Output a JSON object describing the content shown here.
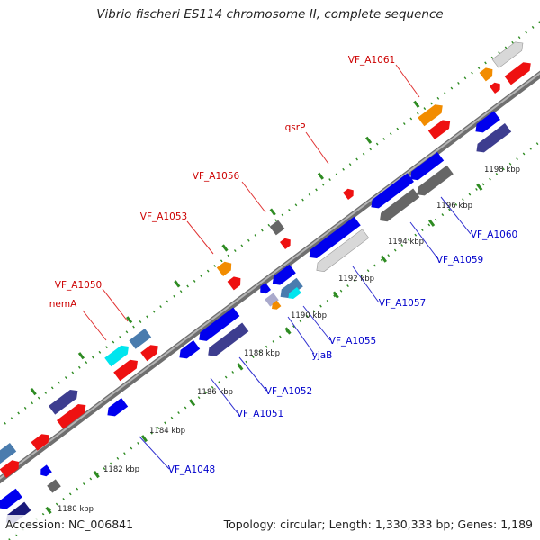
{
  "title": "Vibrio fischeri ES114 chromosome II, complete sequence",
  "footer": {
    "accession": "Accession: NC_006841",
    "topology": "Topology: circular; Length: 1,330,333 bp; Genes: 1,189"
  },
  "colors": {
    "backbone": "#8a8a8a",
    "forward_label": "#cc0000",
    "reverse_label": "#0000cc",
    "tick": "#2e8b22"
  },
  "ticks": [
    {
      "kbp": 1180,
      "label": "1180 kbp"
    },
    {
      "kbp": 1182,
      "label": "1182 kbp"
    },
    {
      "kbp": 1184,
      "label": "1184 kbp"
    },
    {
      "kbp": 1186,
      "label": "1186 kbp"
    },
    {
      "kbp": 1188,
      "label": "1188 kbp"
    },
    {
      "kbp": 1190,
      "label": "1190 kbp"
    },
    {
      "kbp": 1192,
      "label": "1192 kbp"
    },
    {
      "kbp": 1194,
      "label": "1194 kbp"
    },
    {
      "kbp": 1196,
      "label": "1196 kbp"
    },
    {
      "kbp": 1198,
      "label": "1198 kbp"
    }
  ],
  "labels_forward": [
    "VF_A1061",
    "qsrP",
    "VF_A1056",
    "VF_A1053",
    "VF_A1050",
    "nemA"
  ],
  "labels_reverse": [
    "VF_A1060",
    "VF_A1059",
    "VF_A1057",
    "VF_A1055",
    "yjaB",
    "VF_A1052",
    "VF_A1051",
    "VF_A1048"
  ]
}
